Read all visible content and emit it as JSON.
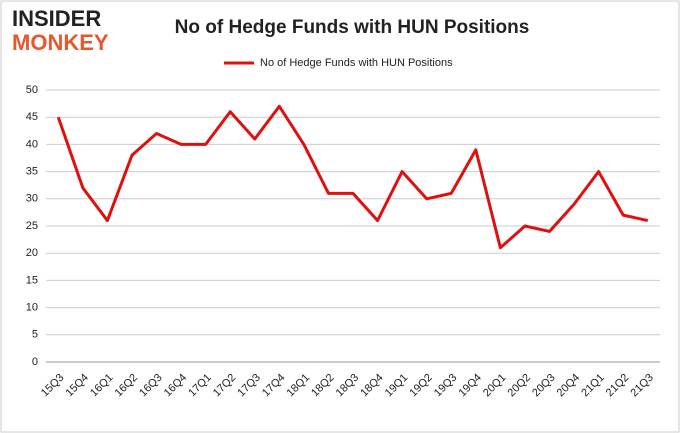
{
  "chart_data": {
    "type": "line",
    "title": "No of Hedge Funds with HUN Positions",
    "logo": [
      "INSIDER",
      "MONKEY"
    ],
    "categories": [
      "15Q3",
      "15Q4",
      "16Q1",
      "16Q2",
      "16Q3",
      "16Q4",
      "17Q1",
      "17Q2",
      "17Q3",
      "17Q4",
      "18Q1",
      "18Q2",
      "18Q3",
      "18Q4",
      "19Q1",
      "19Q2",
      "19Q3",
      "19Q4",
      "20Q1",
      "20Q2",
      "20Q3",
      "20Q4",
      "21Q1",
      "21Q2",
      "21Q3"
    ],
    "series": [
      {
        "name": "No of Hedge Funds with HUN Positions",
        "color": "#e01010",
        "values": [
          45,
          32,
          26,
          38,
          42,
          40,
          40,
          46,
          41,
          47,
          40,
          31,
          31,
          26,
          35,
          30,
          31,
          39,
          21,
          25,
          24,
          29,
          35,
          27,
          26
        ]
      }
    ],
    "ylim": [
      0,
      50
    ],
    "yticks": [
      0,
      5,
      10,
      15,
      20,
      25,
      30,
      35,
      40,
      45,
      50
    ],
    "grid": true,
    "legend": "top"
  }
}
